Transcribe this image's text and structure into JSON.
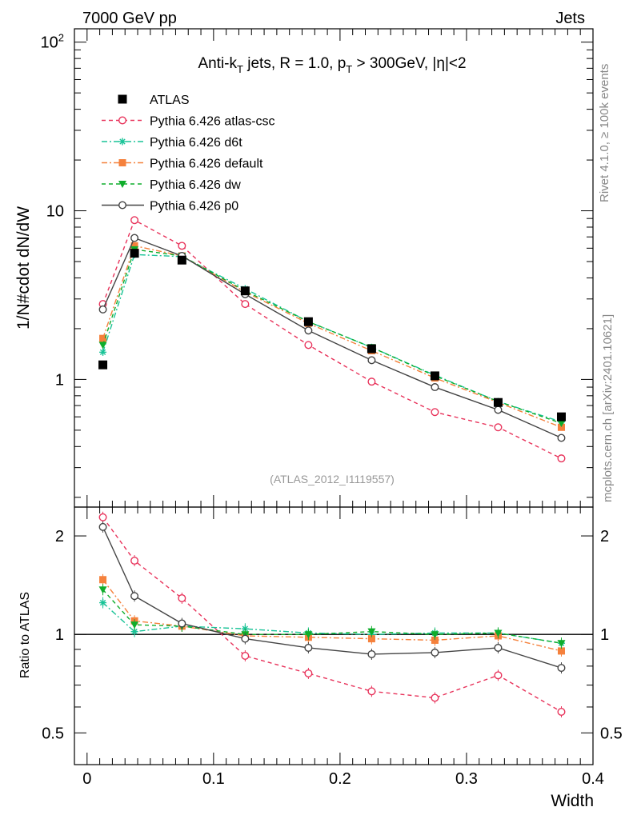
{
  "header": {
    "left": "7000 GeV pp",
    "right": "Jets"
  },
  "side": {
    "rivet": "Rivet 4.1.0, ≥ 100k events",
    "mcplots": "mcplots.cern.ch [arXiv:2401.10621]"
  },
  "colors": {
    "atlas": "#000000",
    "atlas_csc": "#e8335b",
    "d6t": "#19c397",
    "default": "#f5813c",
    "dw": "#0fad2b",
    "p0": "#444444"
  },
  "chart_data": [
    {
      "type": "line",
      "panel": "main",
      "title_parts": {
        "pre": "Anti-k",
        "sub1": "T",
        "mid": " jets, R = 1.0, p",
        "sub2": "T",
        "post": " > 300GeV, |η|<2"
      },
      "watermark": "(ATLAS_2012_I1119557)",
      "ylabel": "1/N#cdot dN/dW",
      "yscale": "log",
      "ylim": [
        0.175,
        120
      ],
      "xlim": [
        -0.01,
        0.4
      ],
      "yticks": [
        {
          "value": 1,
          "label": "1"
        },
        {
          "value": 10,
          "label": "10"
        },
        {
          "value": 100,
          "label": "10",
          "sup": "2"
        }
      ],
      "x": [
        0.0125,
        0.0375,
        0.075,
        0.125,
        0.175,
        0.225,
        0.275,
        0.325,
        0.375
      ],
      "series": [
        {
          "key": "atlas",
          "name": "ATLAS",
          "marker": "filled-square",
          "line": "none",
          "values": [
            1.22,
            5.6,
            5.1,
            3.35,
            2.2,
            1.52,
            1.05,
            0.73,
            0.6
          ]
        },
        {
          "key": "atlas_csc",
          "name": "Pythia 6.426 atlas-csc",
          "marker": "open-circle",
          "line": "dashed",
          "values": [
            2.8,
            8.8,
            6.2,
            2.8,
            1.6,
            0.97,
            0.64,
            0.52,
            0.34
          ]
        },
        {
          "key": "d6t",
          "name": "Pythia 6.426 d6t",
          "marker": "asterisk",
          "line": "dashdot",
          "values": [
            1.45,
            5.5,
            5.35,
            3.45,
            2.2,
            1.55,
            1.06,
            0.74,
            0.56
          ]
        },
        {
          "key": "default",
          "name": "Pythia 6.426 default",
          "marker": "filled-square-small",
          "line": "dashdot",
          "values": [
            1.75,
            6.2,
            5.4,
            3.3,
            2.15,
            1.48,
            1.02,
            0.73,
            0.52
          ]
        },
        {
          "key": "dw",
          "name": "Pythia 6.426 dw",
          "marker": "filled-triangle-down",
          "line": "dashed",
          "values": [
            1.6,
            5.9,
            5.4,
            3.35,
            2.2,
            1.55,
            1.05,
            0.74,
            0.55
          ]
        },
        {
          "key": "p0",
          "name": "Pythia 6.426 p0",
          "marker": "open-circle",
          "line": "solid",
          "values": [
            2.6,
            6.9,
            5.4,
            3.2,
            1.95,
            1.3,
            0.9,
            0.66,
            0.45
          ]
        }
      ]
    },
    {
      "type": "line",
      "panel": "ratio",
      "ylabel": "Ratio to ATLAS",
      "xlabel": "Width",
      "yscale": "log",
      "ylim": [
        0.4,
        2.45
      ],
      "xlim": [
        -0.01,
        0.4
      ],
      "xticks": [
        {
          "value": 0,
          "label": "0"
        },
        {
          "value": 0.1,
          "label": "0.1"
        },
        {
          "value": 0.2,
          "label": "0.2"
        },
        {
          "value": 0.3,
          "label": "0.3"
        },
        {
          "value": 0.4,
          "label": "0.4"
        }
      ],
      "yticks": [
        {
          "value": 0.5,
          "label": "0.5"
        },
        {
          "value": 1,
          "label": "1"
        },
        {
          "value": 2,
          "label": "2"
        }
      ],
      "reference": 1,
      "x": [
        0.0125,
        0.0375,
        0.075,
        0.125,
        0.175,
        0.225,
        0.275,
        0.325,
        0.375
      ],
      "series": [
        {
          "key": "atlas_csc",
          "name": "Pythia 6.426 atlas-csc",
          "values": [
            2.28,
            1.68,
            1.29,
            0.86,
            0.76,
            0.67,
            0.64,
            0.75,
            0.58
          ]
        },
        {
          "key": "d6t",
          "name": "Pythia 6.426 d6t",
          "values": [
            1.25,
            1.02,
            1.06,
            1.04,
            1.01,
            1.0,
            1.01,
            1.01,
            0.94
          ]
        },
        {
          "key": "default",
          "name": "Pythia 6.426 default",
          "values": [
            1.47,
            1.1,
            1.06,
            0.99,
            0.98,
            0.97,
            0.96,
            0.99,
            0.89
          ]
        },
        {
          "key": "dw",
          "name": "Pythia 6.426 dw",
          "values": [
            1.37,
            1.07,
            1.06,
            1.0,
            1.0,
            1.02,
            1.0,
            1.01,
            0.94
          ]
        },
        {
          "key": "p0",
          "name": "Pythia 6.426 p0",
          "values": [
            2.13,
            1.31,
            1.08,
            0.97,
            0.91,
            0.87,
            0.88,
            0.91,
            0.79
          ]
        }
      ]
    }
  ]
}
